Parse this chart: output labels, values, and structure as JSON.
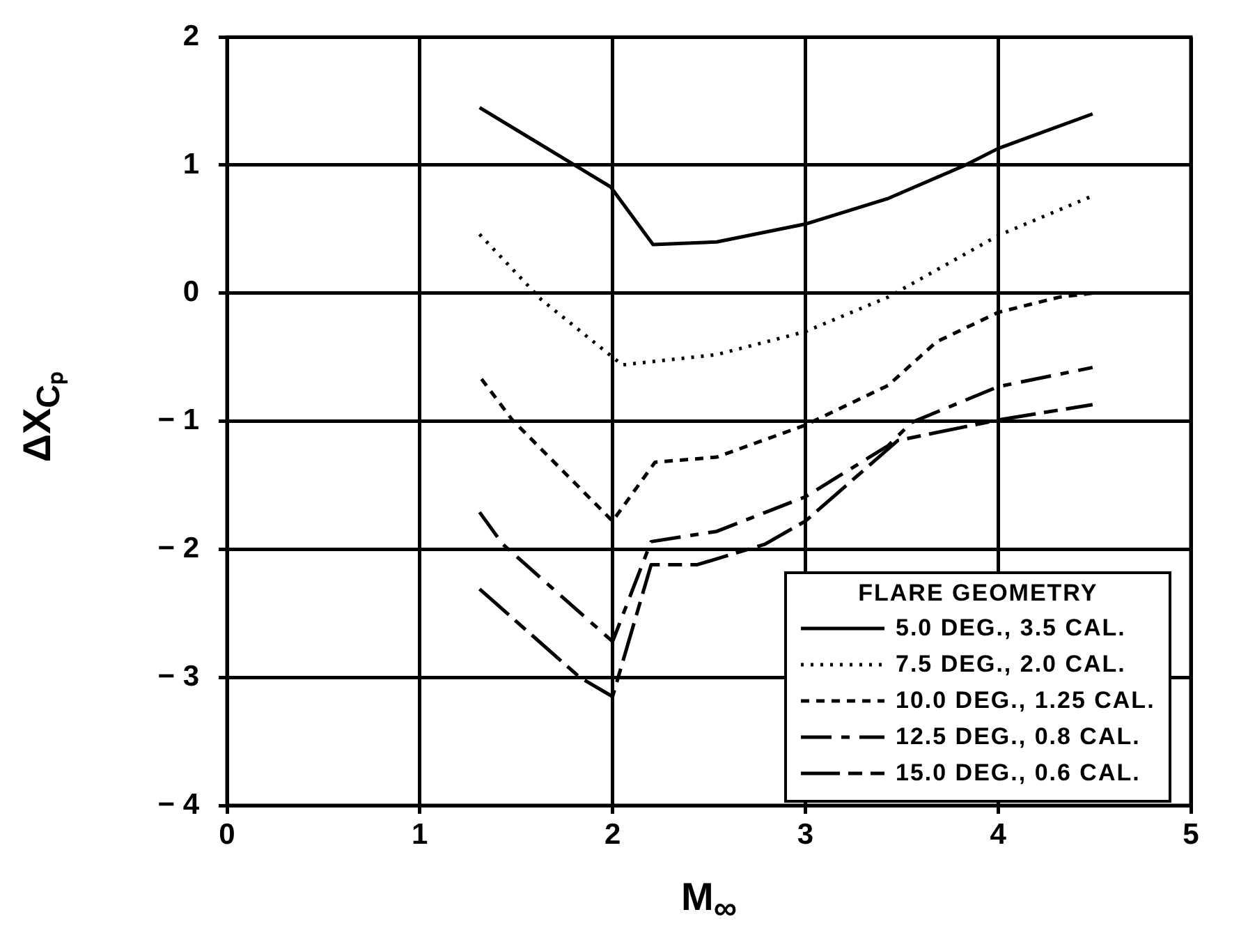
{
  "chart_data": {
    "type": "line",
    "xlabel": "M$_{∞}$",
    "ylabel": "ΔX$_{Cₚ}$",
    "legend_title": "FLARE GEOMETRY",
    "xlim": [
      0,
      5
    ],
    "xticks": [
      0,
      1,
      2,
      3,
      4,
      5
    ],
    "ylim": [
      -4,
      2
    ],
    "yticks": [
      -4,
      -3,
      -2,
      -1,
      0,
      1,
      2
    ],
    "grid": true,
    "legend": "bottom right",
    "marker": "none",
    "series": [
      {
        "name": "5.0 DEG., 3.5 CAL.",
        "color": "#000000",
        "line_style": "solid",
        "x": [
          1.31,
          1.77,
          1.99,
          2.21,
          2.54,
          3.0,
          3.43,
          3.83,
          4.0,
          4.49
        ],
        "values": [
          1.45,
          1.03,
          0.83,
          0.38,
          0.4,
          0.54,
          0.74,
          1.0,
          1.13,
          1.4
        ]
      },
      {
        "name": "7.5 DEG., 2.0 CAL.",
        "color": "#000000",
        "line_style": "dotted",
        "x": [
          1.31,
          1.63,
          2.05,
          2.54,
          3.0,
          3.43,
          4.0,
          4.49
        ],
        "values": [
          0.46,
          -0.05,
          -0.56,
          -0.48,
          -0.3,
          -0.03,
          0.45,
          0.76
        ]
      },
      {
        "name": "10.0 DEG., 1.25 CAL.",
        "color": "#000000",
        "line_style": "dashed",
        "x": [
          1.32,
          1.48,
          2.0,
          2.22,
          2.54,
          3.0,
          3.43,
          3.68,
          4.0,
          4.32,
          4.49
        ],
        "values": [
          -0.67,
          -0.99,
          -1.78,
          -1.32,
          -1.28,
          -1.03,
          -0.72,
          -0.38,
          -0.15,
          -0.03,
          0.0
        ]
      },
      {
        "name": "12.5 DEG., 0.8 CAL.",
        "color": "#000000",
        "line_style": "dashdot",
        "x": [
          1.31,
          1.43,
          2.0,
          2.2,
          2.54,
          3.0,
          3.43,
          3.55,
          4.0,
          4.49
        ],
        "values": [
          -1.71,
          -1.96,
          -2.72,
          -1.94,
          -1.86,
          -1.59,
          -1.19,
          -1.01,
          -0.73,
          -0.58
        ]
      },
      {
        "name": "15.0 DEG., 0.6 CAL.",
        "color": "#000000",
        "line_style": "longdash",
        "x": [
          1.31,
          1.83,
          2.0,
          2.2,
          2.44,
          2.79,
          3.0,
          3.48,
          3.87,
          4.0,
          4.49
        ],
        "values": [
          -2.31,
          -3.0,
          -3.15,
          -2.12,
          -2.12,
          -1.96,
          -1.78,
          -1.15,
          -1.03,
          -0.99,
          -0.87
        ]
      }
    ]
  }
}
